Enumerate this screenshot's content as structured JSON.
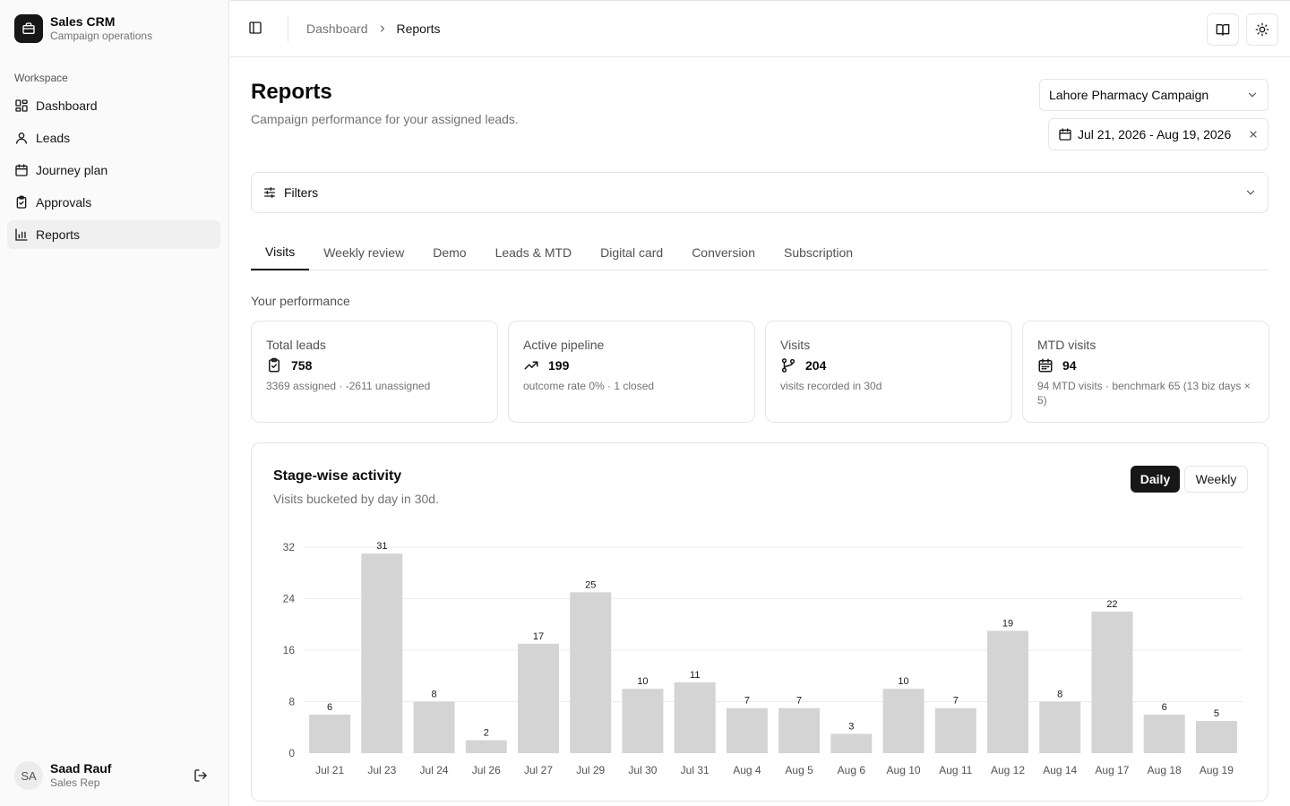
{
  "sidebar": {
    "brand": {
      "title": "Sales CRM",
      "subtitle": "Campaign operations"
    },
    "group_label": "Workspace",
    "items": [
      {
        "label": "Dashboard",
        "icon": "dashboard-icon"
      },
      {
        "label": "Leads",
        "icon": "user-icon"
      },
      {
        "label": "Journey plan",
        "icon": "calendar-icon"
      },
      {
        "label": "Approvals",
        "icon": "clipboard-check-icon"
      },
      {
        "label": "Reports",
        "icon": "bar-chart-icon",
        "active": true
      }
    ],
    "user": {
      "initials": "SA",
      "name": "Saad Rauf",
      "role": "Sales Rep"
    }
  },
  "header": {
    "breadcrumb": [
      "Dashboard",
      "Reports"
    ]
  },
  "page": {
    "title": "Reports",
    "subtitle": "Campaign performance for your assigned leads.",
    "campaign": "Lahore Pharmacy Campaign",
    "date_range": "Jul 21, 2026 - Aug 19, 2026",
    "filters_label": "Filters"
  },
  "tabs": [
    {
      "label": "Visits",
      "active": true
    },
    {
      "label": "Weekly review"
    },
    {
      "label": "Demo"
    },
    {
      "label": "Leads & MTD"
    },
    {
      "label": "Digital card"
    },
    {
      "label": "Conversion"
    },
    {
      "label": "Subscription"
    }
  ],
  "performance": {
    "title": "Your performance",
    "cards": [
      {
        "label": "Total leads",
        "value": "758",
        "note": "3369 assigned · -2611 unassigned",
        "icon": "clipboard-check-icon"
      },
      {
        "label": "Active pipeline",
        "value": "199",
        "note": "outcome rate 0% · 1 closed",
        "icon": "trending-up-icon"
      },
      {
        "label": "Visits",
        "value": "204",
        "note": "visits recorded in 30d",
        "icon": "git-branch-icon"
      },
      {
        "label": "MTD visits",
        "value": "94",
        "note": "94 MTD visits · benchmark 65 (13 biz days × 5)",
        "icon": "calendar-icon"
      }
    ]
  },
  "activity": {
    "title": "Stage-wise activity",
    "subtitle": "Visits bucketed by day in 30d.",
    "toggle": {
      "daily": "Daily",
      "weekly": "Weekly",
      "selected": "Daily"
    }
  },
  "chart_data": {
    "type": "bar",
    "categories": [
      "Jul 21",
      "Jul 23",
      "Jul 24",
      "Jul 26",
      "Jul 27",
      "Jul 29",
      "Jul 30",
      "Jul 31",
      "Aug 4",
      "Aug 5",
      "Aug 6",
      "Aug 10",
      "Aug 11",
      "Aug 12",
      "Aug 14",
      "Aug 17",
      "Aug 18",
      "Aug 19"
    ],
    "values": [
      6,
      31,
      8,
      2,
      17,
      25,
      10,
      11,
      7,
      7,
      3,
      10,
      7,
      19,
      8,
      22,
      6,
      5
    ],
    "ylim": [
      0,
      32
    ],
    "yticks": [
      0,
      8,
      16,
      24,
      32
    ],
    "grid": true,
    "bar_color": "#d4d4d4",
    "data_labels": true
  }
}
